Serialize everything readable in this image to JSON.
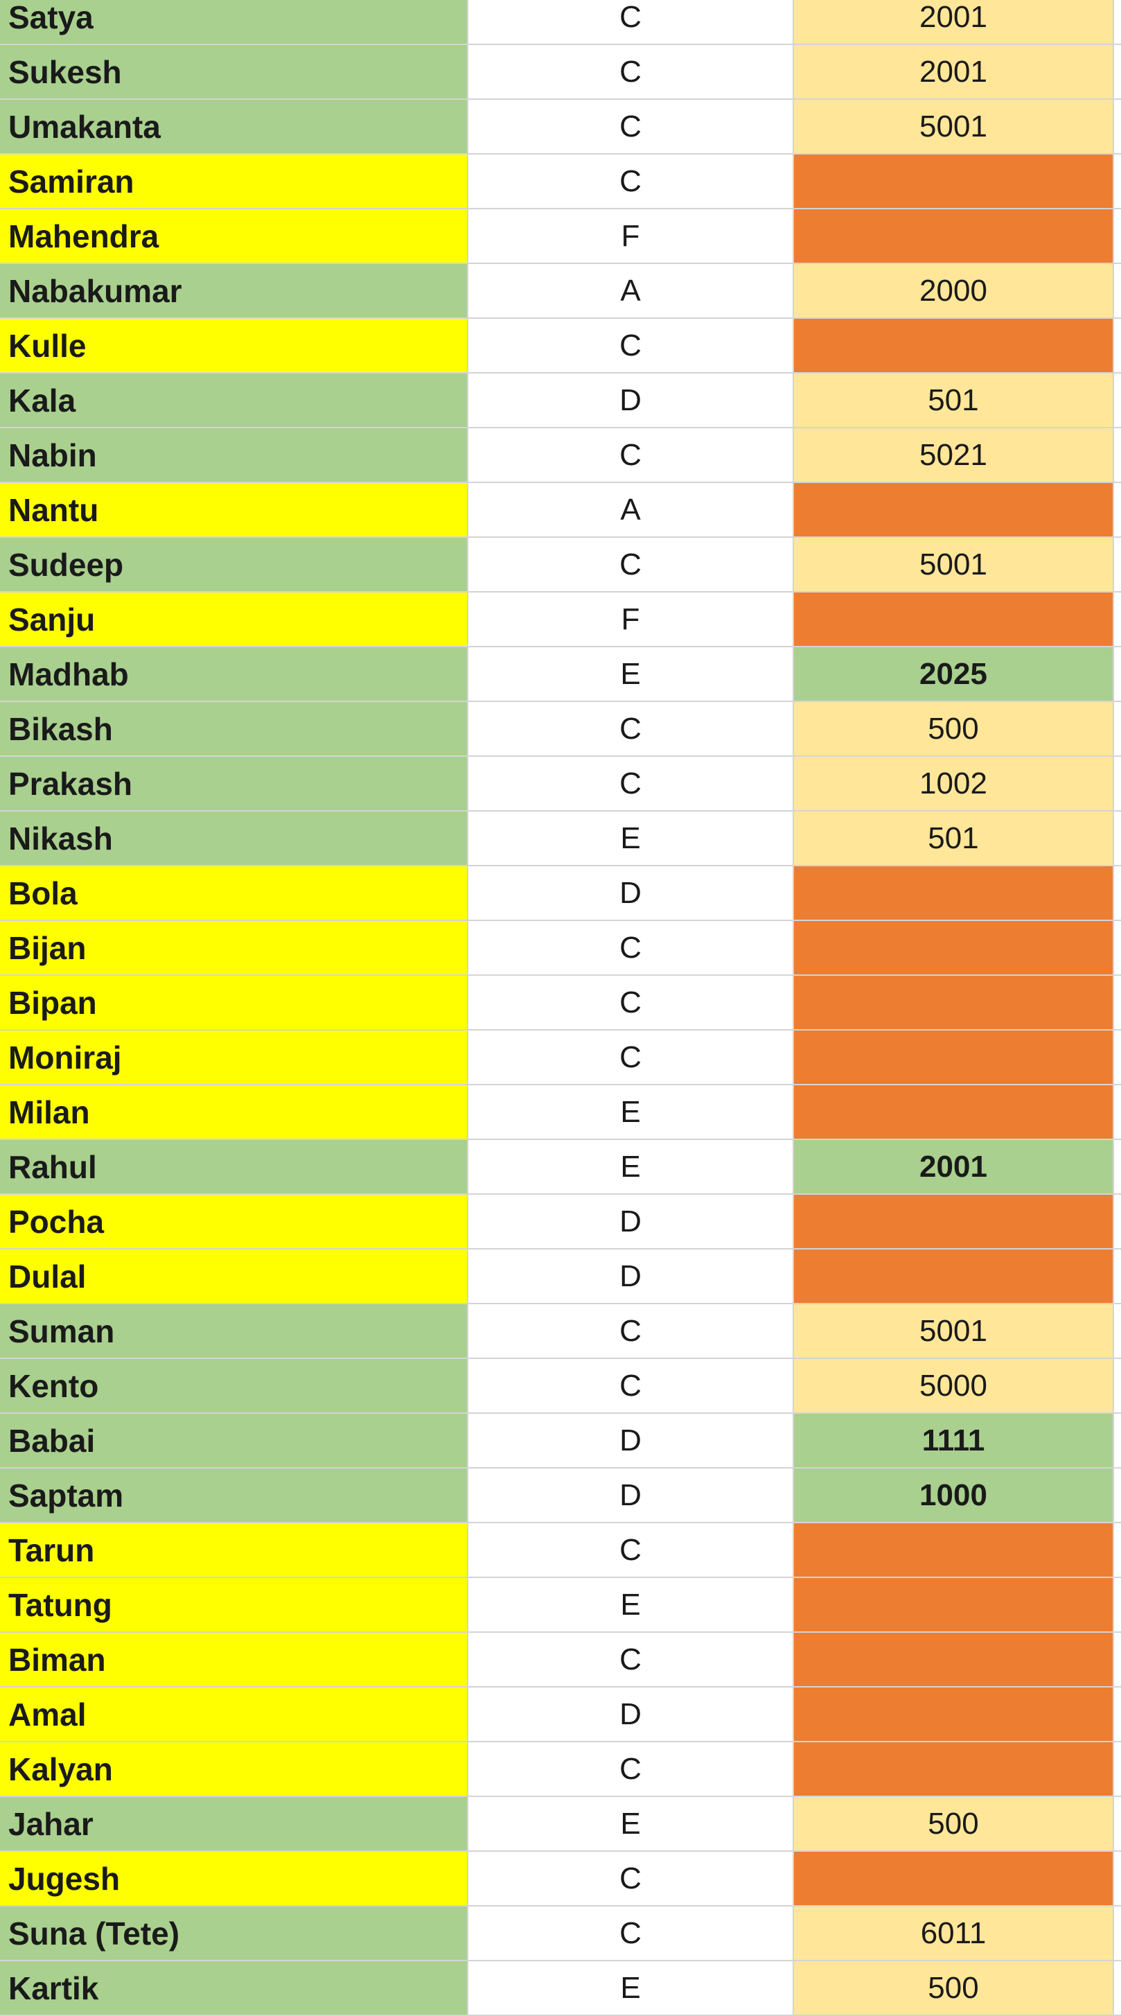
{
  "colors": {
    "name_green": "#a9d08e",
    "name_yellow": "#ffff00",
    "value_light": "#ffe699",
    "value_orange": "#ed7d31",
    "value_green": "#a9d08e",
    "grid": "#d4d4d4"
  },
  "rows": [
    {
      "name": "Satya",
      "grade": "C",
      "value": "2001",
      "name_fill": "green",
      "value_fill": "light",
      "bold": false
    },
    {
      "name": "Sukesh",
      "grade": "C",
      "value": "2001",
      "name_fill": "green",
      "value_fill": "light",
      "bold": false
    },
    {
      "name": "Umakanta",
      "grade": "C",
      "value": "5001",
      "name_fill": "green",
      "value_fill": "light",
      "bold": false
    },
    {
      "name": "Samiran",
      "grade": "C",
      "value": "",
      "name_fill": "yellow",
      "value_fill": "orange",
      "bold": false
    },
    {
      "name": "Mahendra",
      "grade": "F",
      "value": "",
      "name_fill": "yellow",
      "value_fill": "orange",
      "bold": false
    },
    {
      "name": "Nabakumar",
      "grade": "A",
      "value": "2000",
      "name_fill": "green",
      "value_fill": "light",
      "bold": false
    },
    {
      "name": "Kulle",
      "grade": "C",
      "value": "",
      "name_fill": "yellow",
      "value_fill": "orange",
      "bold": false
    },
    {
      "name": "Kala",
      "grade": "D",
      "value": "501",
      "name_fill": "green",
      "value_fill": "light",
      "bold": false
    },
    {
      "name": "Nabin",
      "grade": "C",
      "value": "5021",
      "name_fill": "green",
      "value_fill": "light",
      "bold": false
    },
    {
      "name": "Nantu",
      "grade": "A",
      "value": "",
      "name_fill": "yellow",
      "value_fill": "orange",
      "bold": false
    },
    {
      "name": "Sudeep",
      "grade": "C",
      "value": "5001",
      "name_fill": "green",
      "value_fill": "light",
      "bold": false
    },
    {
      "name": "Sanju",
      "grade": "F",
      "value": "",
      "name_fill": "yellow",
      "value_fill": "orange",
      "bold": false
    },
    {
      "name": "Madhab",
      "grade": "E",
      "value": "2025",
      "name_fill": "green",
      "value_fill": "green",
      "bold": true
    },
    {
      "name": "Bikash",
      "grade": "C",
      "value": "500",
      "name_fill": "green",
      "value_fill": "light",
      "bold": false
    },
    {
      "name": "Prakash",
      "grade": "C",
      "value": "1002",
      "name_fill": "green",
      "value_fill": "light",
      "bold": false
    },
    {
      "name": "Nikash",
      "grade": "E",
      "value": "501",
      "name_fill": "green",
      "value_fill": "light",
      "bold": false
    },
    {
      "name": "Bola",
      "grade": "D",
      "value": "",
      "name_fill": "yellow",
      "value_fill": "orange",
      "bold": false
    },
    {
      "name": "Bijan",
      "grade": "C",
      "value": "",
      "name_fill": "yellow",
      "value_fill": "orange",
      "bold": false
    },
    {
      "name": "Bipan",
      "grade": "C",
      "value": "",
      "name_fill": "yellow",
      "value_fill": "orange",
      "bold": false
    },
    {
      "name": "Moniraj",
      "grade": "C",
      "value": "",
      "name_fill": "yellow",
      "value_fill": "orange",
      "bold": false
    },
    {
      "name": "Milan",
      "grade": "E",
      "value": "",
      "name_fill": "yellow",
      "value_fill": "orange",
      "bold": false
    },
    {
      "name": "Rahul",
      "grade": "E",
      "value": "2001",
      "name_fill": "green",
      "value_fill": "green",
      "bold": true
    },
    {
      "name": "Pocha",
      "grade": "D",
      "value": "",
      "name_fill": "yellow",
      "value_fill": "orange",
      "bold": false
    },
    {
      "name": "Dulal",
      "grade": "D",
      "value": "",
      "name_fill": "yellow",
      "value_fill": "orange",
      "bold": false
    },
    {
      "name": "Suman",
      "grade": "C",
      "value": "5001",
      "name_fill": "green",
      "value_fill": "light",
      "bold": false
    },
    {
      "name": "Kento",
      "grade": "C",
      "value": "5000",
      "name_fill": "green",
      "value_fill": "light",
      "bold": false
    },
    {
      "name": "Babai",
      "grade": "D",
      "value": "1111",
      "name_fill": "green",
      "value_fill": "green",
      "bold": true
    },
    {
      "name": "Saptam",
      "grade": "D",
      "value": "1000",
      "name_fill": "green",
      "value_fill": "green",
      "bold": true
    },
    {
      "name": "Tarun",
      "grade": "C",
      "value": "",
      "name_fill": "yellow",
      "value_fill": "orange",
      "bold": false
    },
    {
      "name": "Tatung",
      "grade": "E",
      "value": "",
      "name_fill": "yellow",
      "value_fill": "orange",
      "bold": false
    },
    {
      "name": "Biman",
      "grade": "C",
      "value": "",
      "name_fill": "yellow",
      "value_fill": "orange",
      "bold": false
    },
    {
      "name": "Amal",
      "grade": "D",
      "value": "",
      "name_fill": "yellow",
      "value_fill": "orange",
      "bold": false
    },
    {
      "name": "Kalyan",
      "grade": "C",
      "value": "",
      "name_fill": "yellow",
      "value_fill": "orange",
      "bold": false
    },
    {
      "name": "Jahar",
      "grade": "E",
      "value": "500",
      "name_fill": "green",
      "value_fill": "light",
      "bold": false
    },
    {
      "name": "Jugesh",
      "grade": "C",
      "value": "",
      "name_fill": "yellow",
      "value_fill": "orange",
      "bold": false
    },
    {
      "name": "Suna (Tete)",
      "grade": "C",
      "value": "6011",
      "name_fill": "green",
      "value_fill": "light",
      "bold": false
    },
    {
      "name": "Kartik",
      "grade": "E",
      "value": "500",
      "name_fill": "green",
      "value_fill": "light",
      "bold": false
    }
  ]
}
